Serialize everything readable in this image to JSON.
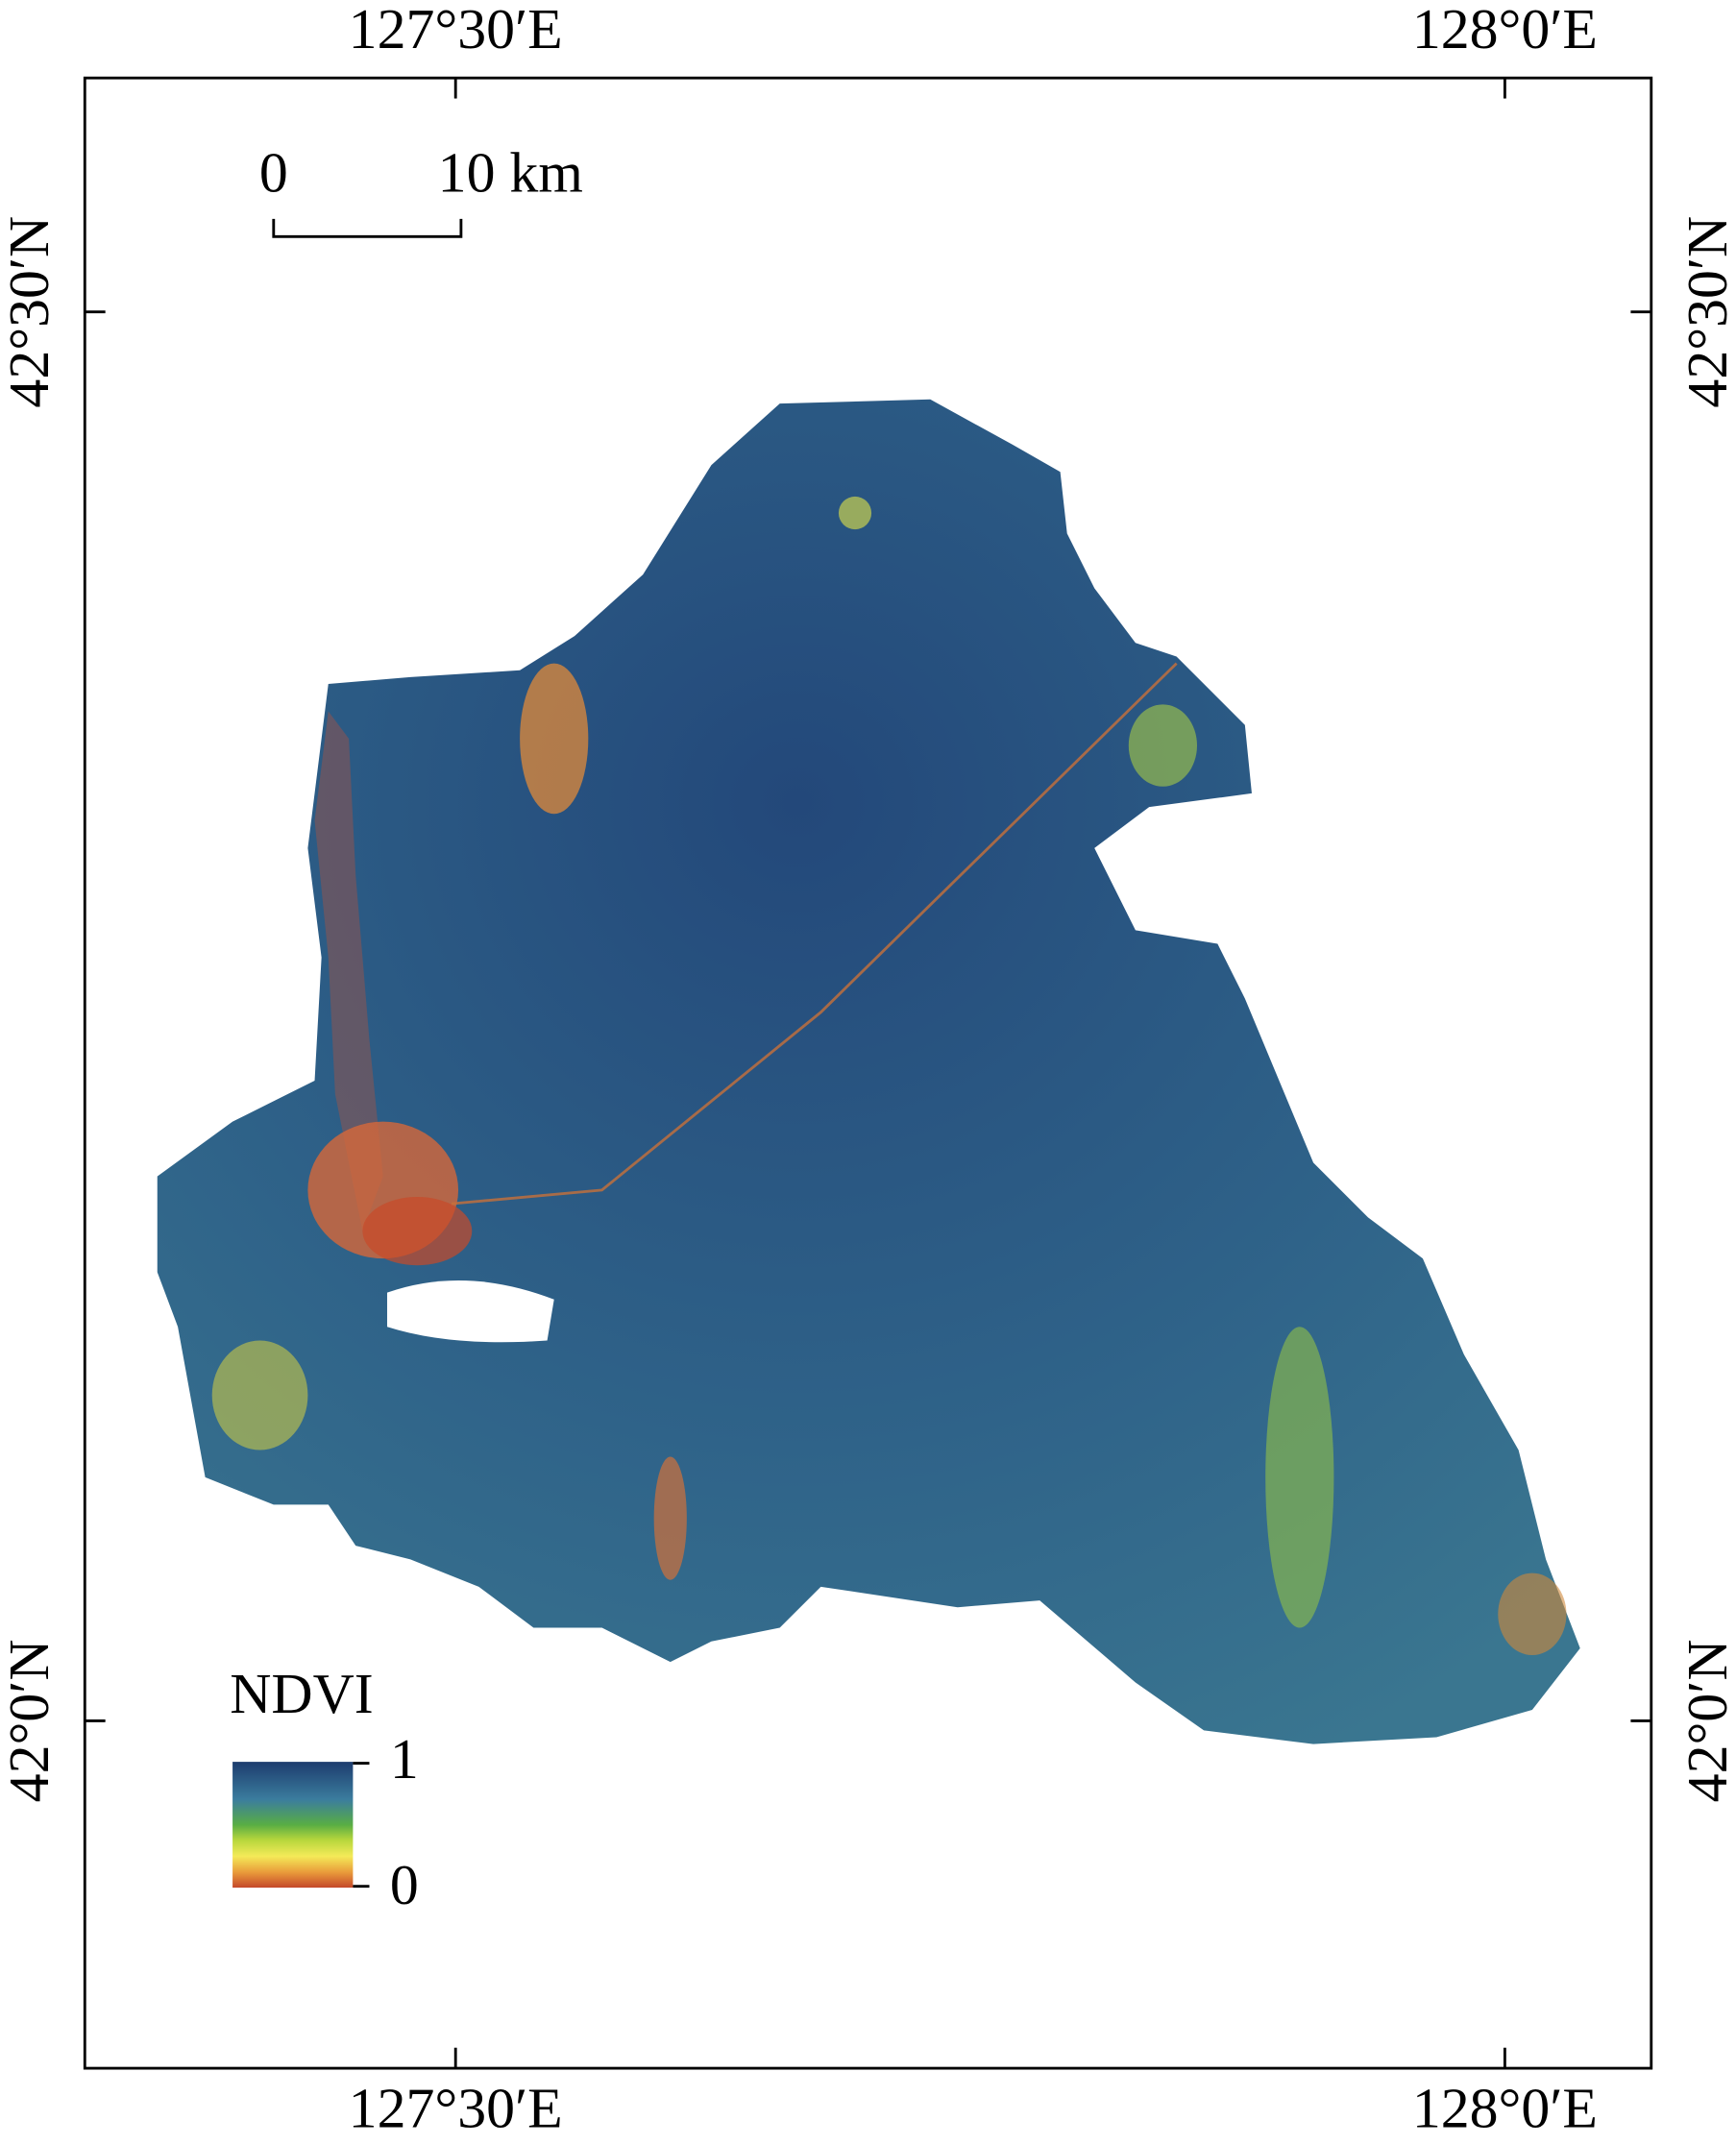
{
  "map": {
    "top_labels": [
      "127°30′E",
      "128°0′E"
    ],
    "bottom_labels": [
      "127°30′E",
      "128°0′E"
    ],
    "left_labels": [
      "42°30′N",
      "42°0′N"
    ],
    "right_labels": [
      "42°30′N",
      "42°0′N"
    ],
    "scale_bar": {
      "start": "0",
      "end": "10 km"
    },
    "legend": {
      "title": "NDVI",
      "max_label": "1",
      "min_label": "0"
    }
  }
}
